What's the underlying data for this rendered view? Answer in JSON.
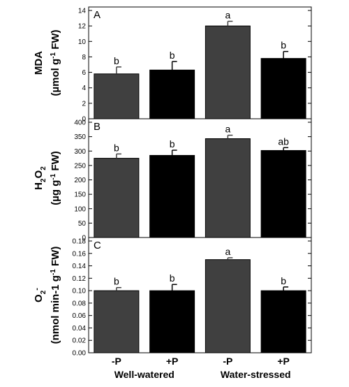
{
  "chart_data": [
    {
      "type": "bar",
      "panel_label": "A",
      "ylabel_main": "MDA",
      "ylabel_unit": "(µmol g-1 FW)",
      "ylim": [
        0,
        14
      ],
      "yticks": [
        "0",
        "2",
        "4",
        "6",
        "8",
        "10",
        "12",
        "14"
      ],
      "categories": [
        "-P",
        "+P",
        "-P",
        "+P"
      ],
      "groups": [
        "Well-watered",
        "Water-stressed"
      ],
      "values": [
        5.8,
        6.3,
        12.0,
        7.8
      ],
      "errors": [
        0.9,
        1.1,
        0.6,
        0.9
      ],
      "significance": [
        "b",
        "b",
        "a",
        "b"
      ],
      "colors": [
        "#404040",
        "#000000",
        "#404040",
        "#000000"
      ]
    },
    {
      "type": "bar",
      "panel_label": "B",
      "ylabel_main": "H2O2",
      "ylabel_unit": "(µg g-1 FW)",
      "ylim": [
        0,
        400
      ],
      "yticks": [
        "0",
        "50",
        "100",
        "150",
        "200",
        "250",
        "300",
        "350",
        "400"
      ],
      "categories": [
        "-P",
        "+P",
        "-P",
        "+P"
      ],
      "groups": [
        "Well-watered",
        "Water-stressed"
      ],
      "values": [
        275,
        285,
        343,
        302
      ],
      "errors": [
        15,
        18,
        12,
        10
      ],
      "significance": [
        "b",
        "b",
        "a",
        "ab"
      ],
      "colors": [
        "#404040",
        "#000000",
        "#404040",
        "#000000"
      ]
    },
    {
      "type": "bar",
      "panel_label": "C",
      "ylabel_main": "O2-",
      "ylabel_unit": "(nmol min-1 g-1 FW)",
      "ylim": [
        0,
        0.18
      ],
      "yticks": [
        "0.00",
        "0.02",
        "0.04",
        "0.06",
        "0.08",
        "0.10",
        "0.12",
        "0.14",
        "0.16",
        "0.18"
      ],
      "categories": [
        "-P",
        "+P",
        "-P",
        "+P"
      ],
      "groups": [
        "Well-watered",
        "Water-stressed"
      ],
      "values": [
        0.1,
        0.1,
        0.15,
        0.1
      ],
      "errors": [
        0.005,
        0.01,
        0.003,
        0.006
      ],
      "significance": [
        "b",
        "b",
        "a",
        "b"
      ],
      "colors": [
        "#404040",
        "#000000",
        "#404040",
        "#000000"
      ]
    }
  ]
}
